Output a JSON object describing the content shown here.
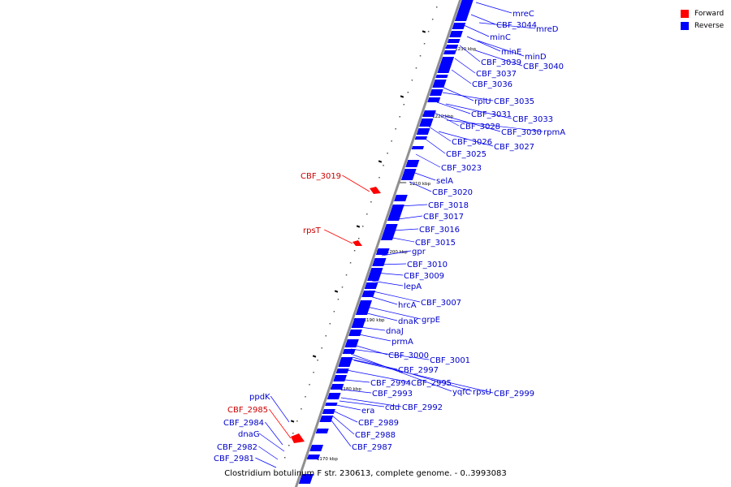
{
  "colors": {
    "forward": "#ff0000",
    "reverse": "#0000ff",
    "backbone": "#909090",
    "label": "#0000cc",
    "label_forward": "#cc0000"
  },
  "legend": [
    {
      "label": "Forward",
      "color": "#ff0000"
    },
    {
      "label": "Reverse",
      "color": "#0000ff"
    }
  ],
  "caption": "Clostridium botulinum F str. 230613, complete genome. - 0..3993083",
  "scale_ticks": [
    "1170 kbp",
    "1180 kbp",
    "1190 kbp",
    "1200 kbp",
    "1210 kbp",
    "1220 kbp",
    "1230 kbp"
  ],
  "genes_reverse": [
    "mreC",
    "CBF_3044",
    "mreD",
    "minC",
    "minE",
    "minD",
    "CBF_3039",
    "CBF_3040",
    "CBF_3037",
    "CBF_3036",
    "rplU",
    "CBF_3035",
    "CBF_3031",
    "CBF_3033",
    "CBF_3028",
    "CBF_3030",
    "rpmA",
    "CBF_3026",
    "CBF_3027",
    "CBF_3025",
    "CBF_3023",
    "selA",
    "CBF_3020",
    "CBF_3018",
    "CBF_3017",
    "CBF_3016",
    "CBF_3015",
    "gpr",
    "CBF_3010",
    "CBF_3009",
    "lepA",
    "CBF_3007",
    "hrcA",
    "dnaK",
    "grpE",
    "dnaJ",
    "prmA",
    "CBF_3000",
    "CBF_3001",
    "CBF_2997",
    "CBF_2994",
    "CBF_2995",
    "yqfC",
    "rpsU",
    "CBF_2999",
    "CBF_2993",
    "cdd",
    "CBF_2992",
    "era",
    "CBF_2989",
    "CBF_2988",
    "CBF_2987",
    "ppdK",
    "CBF_2984",
    "dnaG",
    "CBF_2982",
    "CBF_2981"
  ],
  "genes_forward": [
    "CBF_3019",
    "rpsT",
    "CBF_2985"
  ]
}
